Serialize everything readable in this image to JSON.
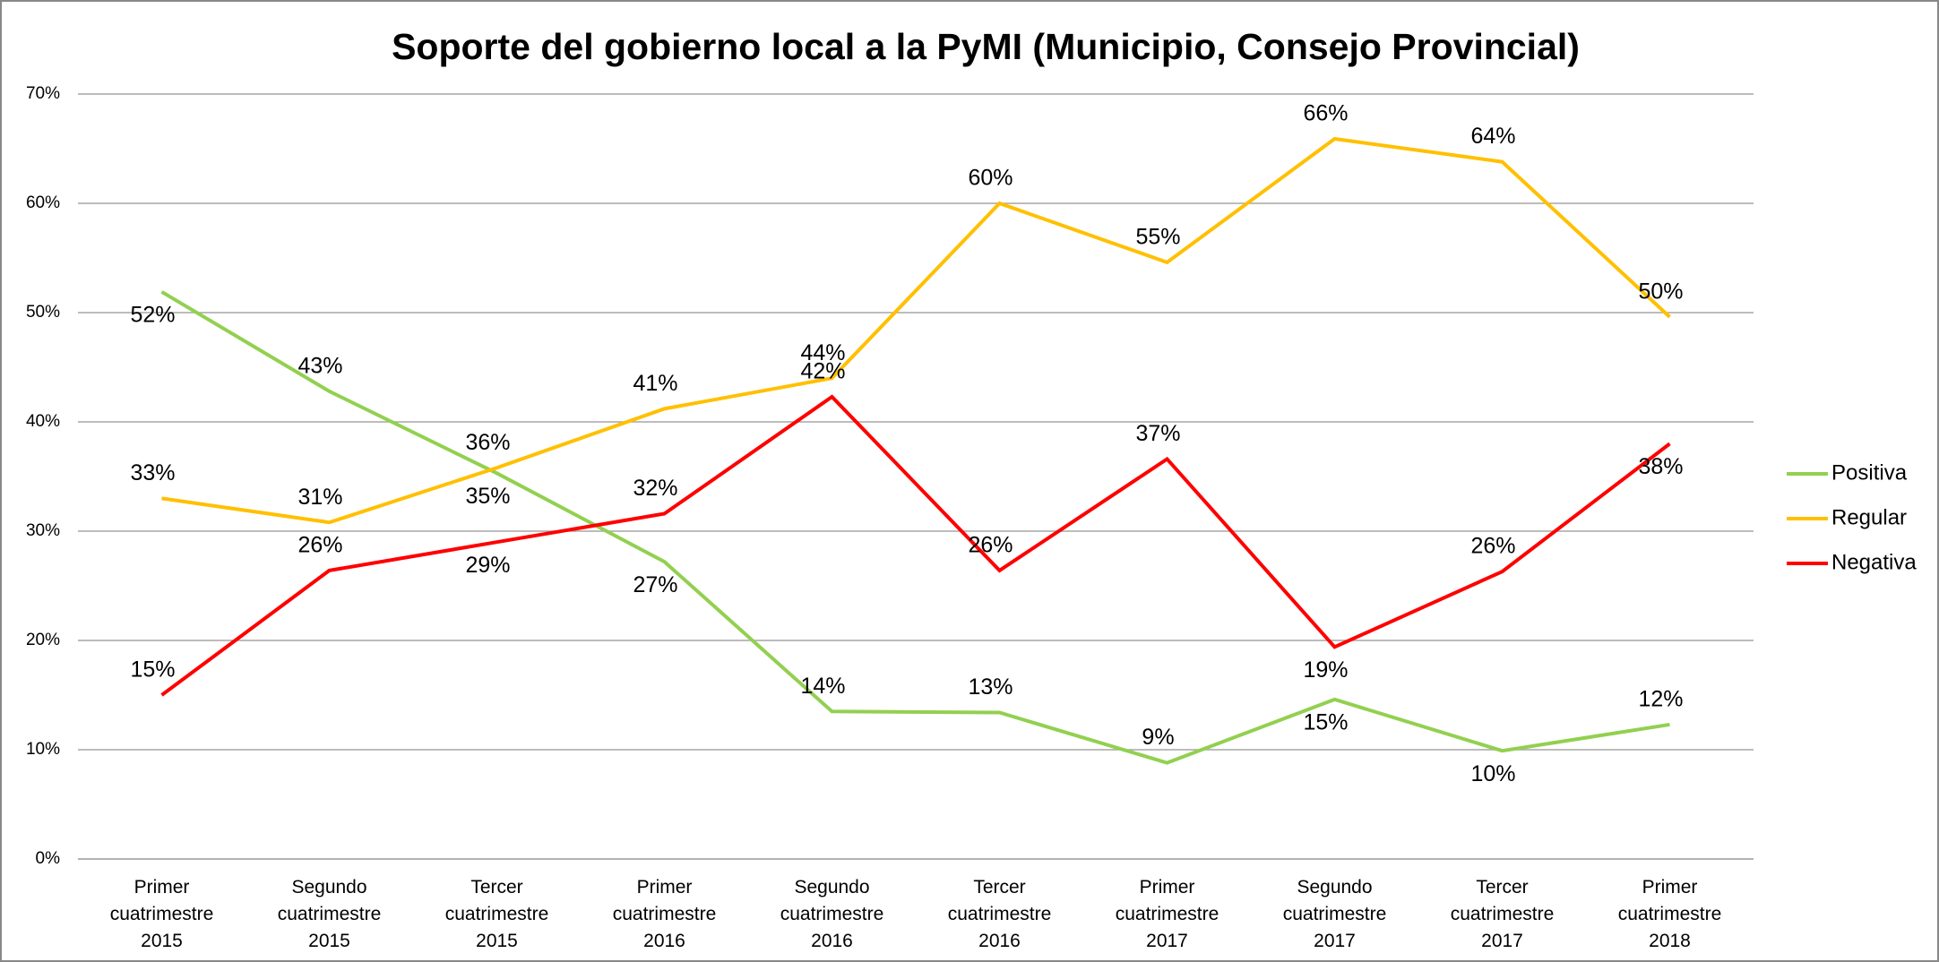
{
  "chart_data": {
    "type": "line",
    "title": "Soporte del gobierno local a la PyMI (Municipio, Consejo Provincial)",
    "categories": [
      "Primer cuatrimestre 2015",
      "Segundo cuatrimestre 2015",
      "Tercer cuatrimestre 2015",
      "Primer cuatrimestre 2016",
      "Segundo cuatrimestre 2016",
      "Tercer cuatrimestre 2016",
      "Primer cuatrimestre 2017",
      "Segundo cuatrimestre 2017",
      "Tercer cuatrimestre 2017",
      "Primer cuatrimestre 2018"
    ],
    "series": [
      {
        "name": "Positiva",
        "color": "#92d050",
        "values": [
          51.9,
          42.8,
          35.3,
          27.2,
          13.5,
          13.4,
          8.8,
          14.6,
          9.9,
          12.3
        ],
        "value_labels": [
          "52%",
          "43%",
          "35%",
          "27%",
          "14%",
          "13%",
          "9%",
          "15%",
          "10%",
          "12%"
        ]
      },
      {
        "name": "Regular",
        "color": "#ffc000",
        "values": [
          33.0,
          30.8,
          35.8,
          41.2,
          44.0,
          60.0,
          54.6,
          65.9,
          63.8,
          49.6
        ],
        "value_labels": [
          "33%",
          "31%",
          "36%",
          "41%",
          "44%",
          "60%",
          "55%",
          "66%",
          "64%",
          "50%"
        ]
      },
      {
        "name": "Negativa",
        "color": "#ff0000",
        "values": [
          15.0,
          26.4,
          29.0,
          31.6,
          42.3,
          26.4,
          36.6,
          19.4,
          26.3,
          38.0
        ],
        "value_labels": [
          "15%",
          "26%",
          "29%",
          "32%",
          "42%",
          "26%",
          "37%",
          "19%",
          "26%",
          "38%"
        ]
      }
    ],
    "ylim": [
      0,
      70
    ],
    "yticks": [
      {
        "value": 0,
        "label": "0%"
      },
      {
        "value": 10,
        "label": "10%"
      },
      {
        "value": 20,
        "label": "20%"
      },
      {
        "value": 30,
        "label": "30%"
      },
      {
        "value": 40,
        "label": "40%"
      },
      {
        "value": 50,
        "label": "50%"
      },
      {
        "value": 60,
        "label": "60%"
      },
      {
        "value": 70,
        "label": "70%"
      }
    ],
    "grid": true,
    "legend": "right"
  }
}
